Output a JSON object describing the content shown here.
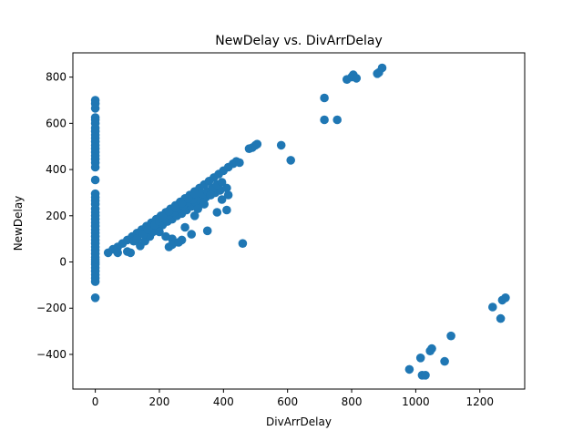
{
  "chart_data": {
    "type": "scatter",
    "title": "NewDelay vs. DivArrDelay",
    "xlabel": "DivArrDelay",
    "ylabel": "NewDelay",
    "xlim": [
      -70,
      1340
    ],
    "ylim": [
      -550,
      905
    ],
    "xticks": [
      0,
      200,
      400,
      600,
      800,
      1000,
      1200
    ],
    "yticks": [
      -400,
      -200,
      0,
      200,
      400,
      600,
      800
    ],
    "xtick_labels": [
      "0",
      "200",
      "400",
      "600",
      "800",
      "1000",
      "1200"
    ],
    "ytick_labels": [
      "−400",
      "−200",
      "0",
      "200",
      "400",
      "600",
      "800"
    ],
    "grid": false,
    "marker_color": "#1f77b4",
    "series": [
      {
        "points": [
          [
            0,
            -155
          ],
          [
            0,
            -85
          ],
          [
            0,
            -70
          ],
          [
            0,
            -55
          ],
          [
            0,
            -40
          ],
          [
            0,
            -25
          ],
          [
            0,
            -10
          ],
          [
            0,
            0
          ],
          [
            0,
            10
          ],
          [
            0,
            20
          ],
          [
            0,
            35
          ],
          [
            0,
            50
          ],
          [
            0,
            65
          ],
          [
            0,
            80
          ],
          [
            0,
            95
          ],
          [
            0,
            110
          ],
          [
            0,
            125
          ],
          [
            0,
            140
          ],
          [
            0,
            155
          ],
          [
            0,
            170
          ],
          [
            0,
            185
          ],
          [
            0,
            200
          ],
          [
            0,
            215
          ],
          [
            0,
            230
          ],
          [
            0,
            250
          ],
          [
            0,
            265
          ],
          [
            0,
            280
          ],
          [
            0,
            295
          ],
          [
            0,
            355
          ],
          [
            0,
            410
          ],
          [
            0,
            430
          ],
          [
            0,
            445
          ],
          [
            0,
            460
          ],
          [
            0,
            475
          ],
          [
            0,
            490
          ],
          [
            0,
            505
          ],
          [
            0,
            520
          ],
          [
            0,
            535
          ],
          [
            0,
            550
          ],
          [
            0,
            565
          ],
          [
            0,
            580
          ],
          [
            0,
            600
          ],
          [
            0,
            615
          ],
          [
            0,
            625
          ],
          [
            0,
            665
          ],
          [
            0,
            685
          ],
          [
            0,
            700
          ],
          [
            40,
            40
          ],
          [
            55,
            55
          ],
          [
            70,
            65
          ],
          [
            85,
            80
          ],
          [
            100,
            95
          ],
          [
            115,
            110
          ],
          [
            130,
            125
          ],
          [
            145,
            140
          ],
          [
            160,
            155
          ],
          [
            175,
            170
          ],
          [
            190,
            185
          ],
          [
            205,
            200
          ],
          [
            220,
            215
          ],
          [
            235,
            230
          ],
          [
            250,
            245
          ],
          [
            265,
            260
          ],
          [
            280,
            275
          ],
          [
            295,
            290
          ],
          [
            310,
            305
          ],
          [
            325,
            320
          ],
          [
            340,
            335
          ],
          [
            355,
            350
          ],
          [
            370,
            365
          ],
          [
            385,
            380
          ],
          [
            400,
            395
          ],
          [
            415,
            410
          ],
          [
            430,
            425
          ],
          [
            440,
            435
          ],
          [
            450,
            430
          ],
          [
            70,
            40
          ],
          [
            100,
            45
          ],
          [
            110,
            40
          ],
          [
            140,
            70
          ],
          [
            155,
            90
          ],
          [
            170,
            110
          ],
          [
            180,
            130
          ],
          [
            195,
            150
          ],
          [
            210,
            160
          ],
          [
            225,
            175
          ],
          [
            240,
            185
          ],
          [
            255,
            200
          ],
          [
            270,
            210
          ],
          [
            285,
            225
          ],
          [
            300,
            240
          ],
          [
            315,
            255
          ],
          [
            330,
            260
          ],
          [
            345,
            280
          ],
          [
            360,
            290
          ],
          [
            375,
            300
          ],
          [
            390,
            310
          ],
          [
            410,
            320
          ],
          [
            120,
            90
          ],
          [
            130,
            100
          ],
          [
            150,
            120
          ],
          [
            165,
            140
          ],
          [
            185,
            160
          ],
          [
            200,
            175
          ],
          [
            215,
            190
          ],
          [
            230,
            205
          ],
          [
            245,
            215
          ],
          [
            260,
            230
          ],
          [
            275,
            245
          ],
          [
            290,
            260
          ],
          [
            305,
            270
          ],
          [
            320,
            285
          ],
          [
            335,
            295
          ],
          [
            350,
            305
          ],
          [
            365,
            320
          ],
          [
            380,
            335
          ],
          [
            395,
            345
          ],
          [
            200,
            190
          ],
          [
            210,
            200
          ],
          [
            230,
            220
          ],
          [
            250,
            235
          ],
          [
            270,
            255
          ],
          [
            290,
            275
          ],
          [
            310,
            295
          ],
          [
            200,
            130
          ],
          [
            220,
            110
          ],
          [
            240,
            100
          ],
          [
            230,
            65
          ],
          [
            240,
            75
          ],
          [
            260,
            85
          ],
          [
            270,
            95
          ],
          [
            280,
            150
          ],
          [
            300,
            120
          ],
          [
            310,
            200
          ],
          [
            320,
            230
          ],
          [
            340,
            250
          ],
          [
            350,
            135
          ],
          [
            360,
            290
          ],
          [
            380,
            215
          ],
          [
            395,
            270
          ],
          [
            410,
            225
          ],
          [
            415,
            290
          ],
          [
            460,
            80
          ],
          [
            480,
            490
          ],
          [
            490,
            495
          ],
          [
            500,
            505
          ],
          [
            505,
            510
          ],
          [
            580,
            505
          ],
          [
            610,
            440
          ],
          [
            715,
            710
          ],
          [
            715,
            615
          ],
          [
            755,
            615
          ],
          [
            785,
            790
          ],
          [
            800,
            800
          ],
          [
            805,
            810
          ],
          [
            815,
            795
          ],
          [
            880,
            815
          ],
          [
            885,
            820
          ],
          [
            895,
            840
          ],
          [
            980,
            -465
          ],
          [
            1015,
            -415
          ],
          [
            1020,
            -490
          ],
          [
            1030,
            -490
          ],
          [
            1045,
            -385
          ],
          [
            1050,
            -375
          ],
          [
            1090,
            -430
          ],
          [
            1110,
            -320
          ],
          [
            1240,
            -195
          ],
          [
            1265,
            -245
          ],
          [
            1270,
            -165
          ],
          [
            1280,
            -155
          ]
        ]
      }
    ]
  }
}
